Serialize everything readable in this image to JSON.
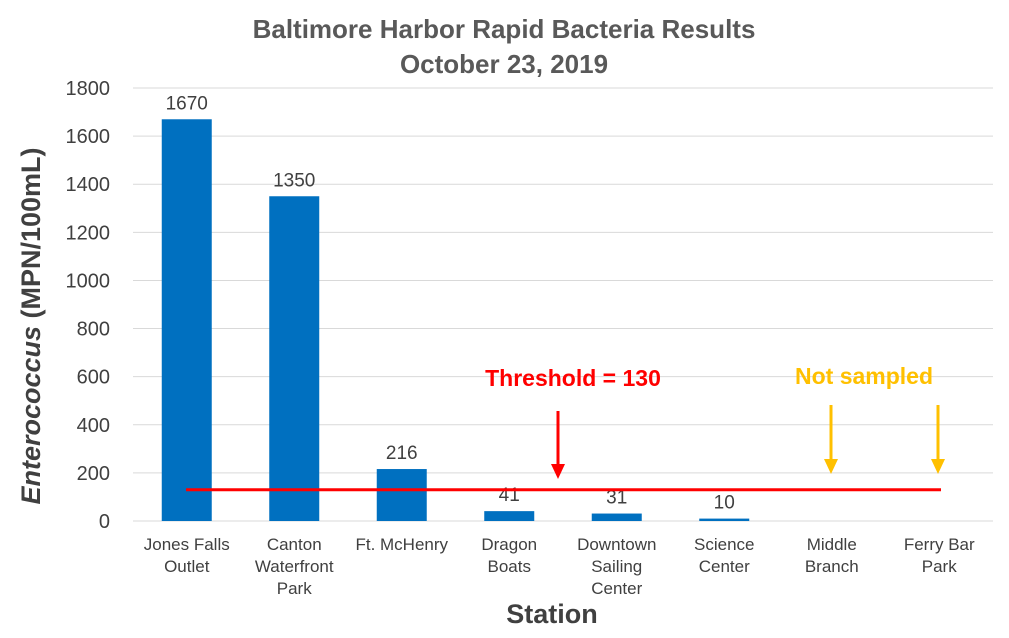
{
  "chart_data": {
    "type": "bar",
    "title_line1": "Baltimore Harbor Rapid Bacteria Results",
    "title_line2": "October 23, 2019",
    "xlabel": "Station",
    "ylabel_italic": "Enterococcus",
    "ylabel_rest": " (MPN/100mL)",
    "ylim": [
      0,
      1800
    ],
    "yticks": [
      0,
      200,
      400,
      600,
      800,
      1000,
      1200,
      1400,
      1600,
      1800
    ],
    "grid": true,
    "categories": [
      [
        "Jones Falls",
        "Outlet"
      ],
      [
        "Canton",
        "Waterfront",
        "Park"
      ],
      [
        "Ft. McHenry"
      ],
      [
        "Dragon",
        "Boats"
      ],
      [
        "Downtown",
        "Sailing",
        "Center"
      ],
      [
        "Science",
        "Center"
      ],
      [
        "Middle",
        "Branch"
      ],
      [
        "Ferry Bar",
        "Park"
      ]
    ],
    "values": [
      1670,
      1350,
      216,
      41,
      31,
      10,
      null,
      null
    ],
    "bar_color": "#0070c0",
    "threshold": {
      "value": 130,
      "label": "Threshold = 130",
      "color": "#ff0000"
    },
    "not_sampled": {
      "label": "Not sampled",
      "color": "#ffc000",
      "category_indices": [
        6,
        7
      ]
    }
  }
}
